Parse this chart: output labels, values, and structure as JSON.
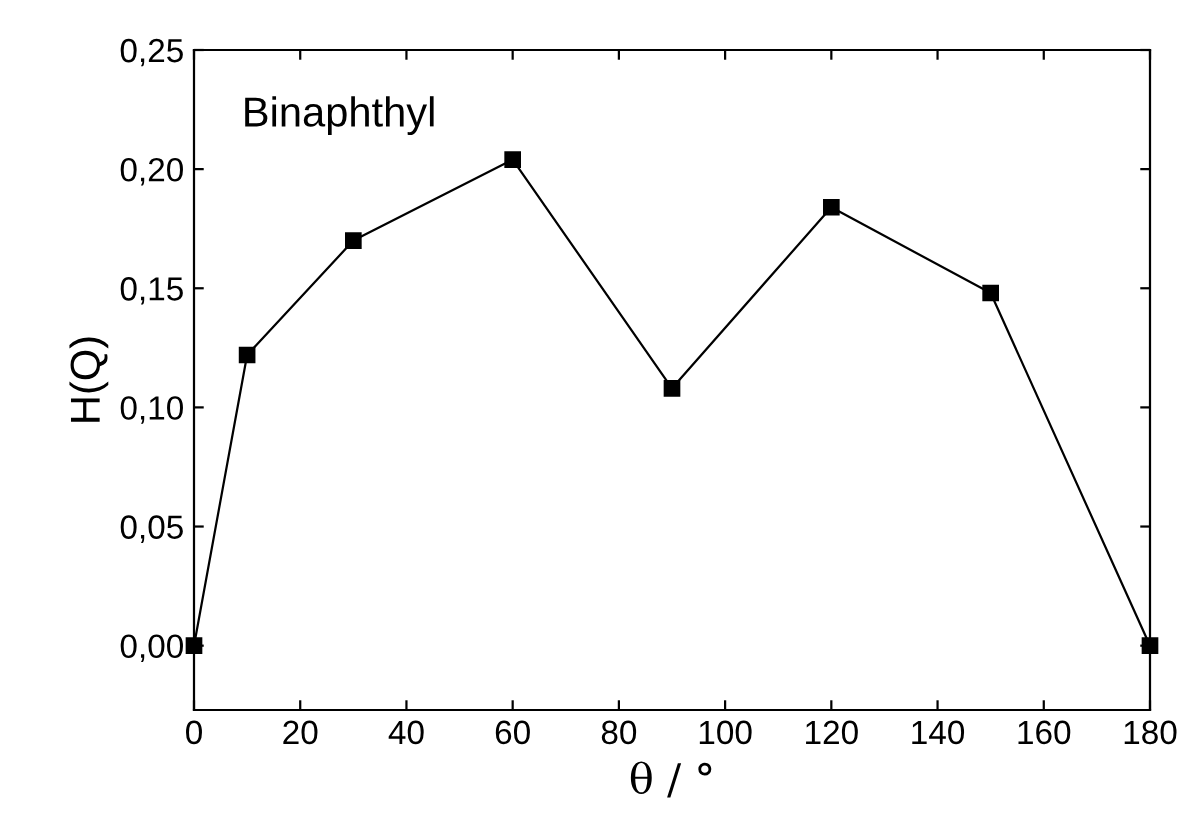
{
  "chart_data": {
    "type": "line",
    "xlabel": "θ / °",
    "ylabel": "H(Q)",
    "annotations": [
      "Binaphthyl"
    ],
    "x": [
      0,
      10,
      30,
      60,
      90,
      120,
      150,
      180
    ],
    "series": [
      {
        "color": "#000000",
        "values": [
          0.0,
          0.122,
          0.17,
          0.204,
          0.108,
          0.184,
          0.148,
          0.0
        ]
      }
    ],
    "marker": "square",
    "line_style": "solid",
    "grid": false,
    "legend": false,
    "xlim": [
      0,
      180
    ],
    "ylim": [
      -0.027,
      0.25
    ],
    "xticks": [
      0,
      20,
      40,
      60,
      80,
      100,
      120,
      140,
      160,
      180
    ],
    "yticks": [
      {
        "value": 0.0,
        "label": "0,00"
      },
      {
        "value": 0.05,
        "label": "0,05"
      },
      {
        "value": 0.1,
        "label": "0,10"
      },
      {
        "value": 0.15,
        "label": "0,15"
      },
      {
        "value": 0.2,
        "label": "0,20"
      },
      {
        "value": 0.25,
        "label": "0,25"
      }
    ]
  }
}
